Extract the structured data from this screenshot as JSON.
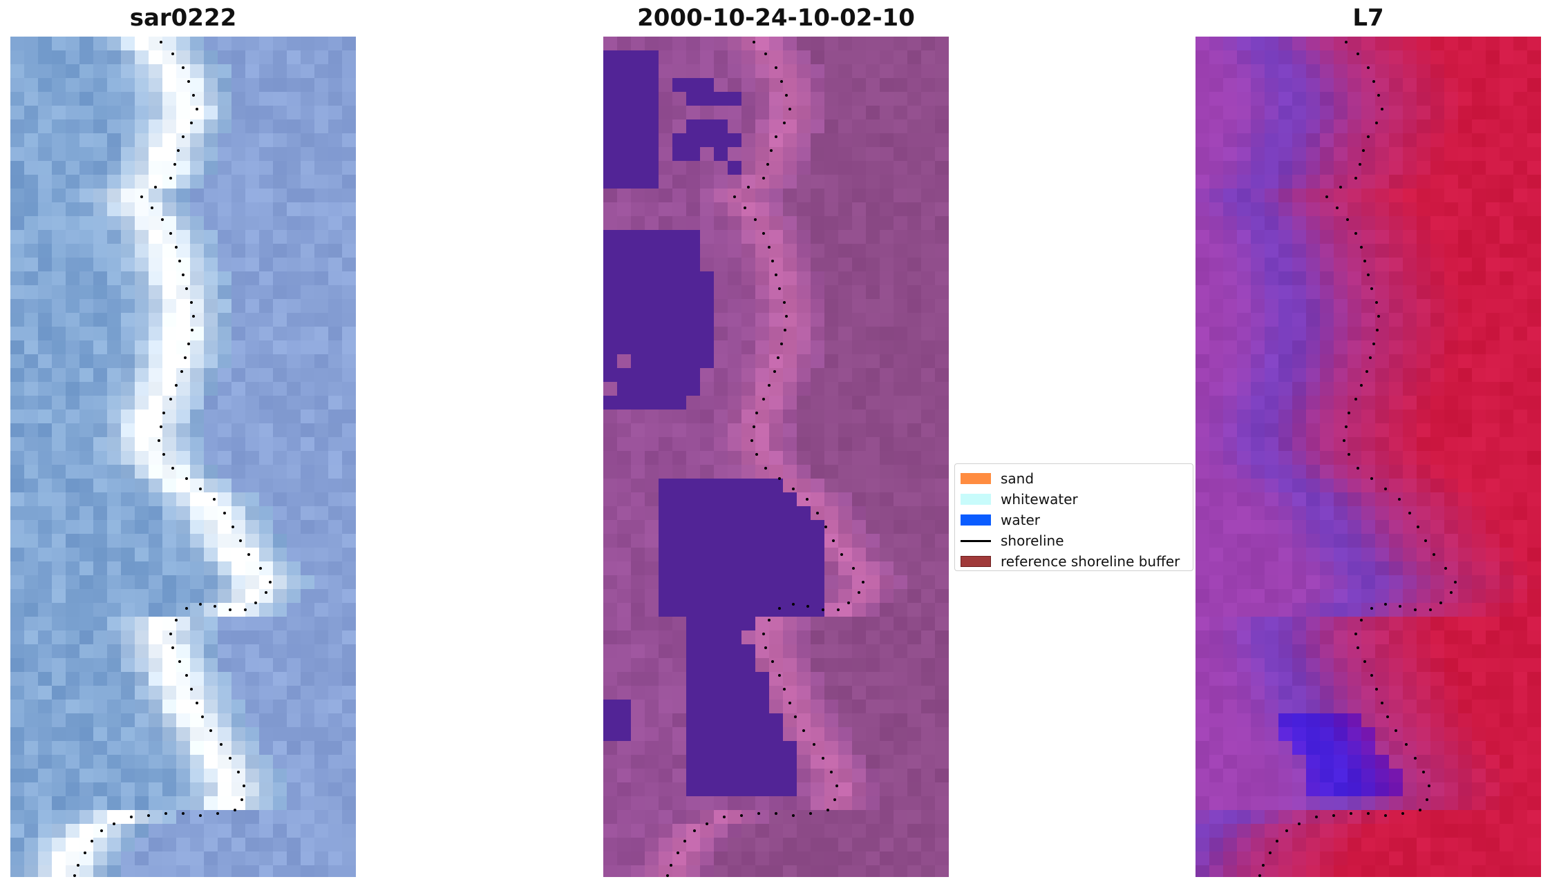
{
  "panels": [
    {
      "title": "sar0222",
      "palette": "rgb"
    },
    {
      "title": "2000-10-24-10-02-10",
      "palette": "classified"
    },
    {
      "title": "L7",
      "palette": "index"
    }
  ],
  "legend": {
    "items": [
      {
        "label": "sand",
        "color": "#ff8c40",
        "kind": "patch"
      },
      {
        "label": "whitewater",
        "color": "#c8fbfb",
        "kind": "patch"
      },
      {
        "label": "water",
        "color": "#0a5cff",
        "kind": "patch"
      },
      {
        "label": "shoreline",
        "color": "#000000",
        "kind": "line"
      },
      {
        "label": "reference shoreline buffer",
        "color": "#a03a3a",
        "kind": "patch"
      }
    ]
  },
  "colors": {
    "water_class": "#4f2496",
    "background_purple": "#8a4a8c",
    "index_red": "#c4003a",
    "index_purple": "#5a0aa8"
  }
}
